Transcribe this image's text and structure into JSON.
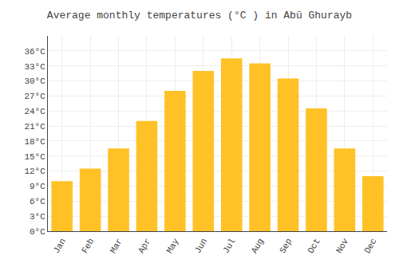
{
  "chart_data": {
    "type": "bar",
    "title": "Average monthly temperatures (°C ) in Abū Ghurayb",
    "categories": [
      "Jan",
      "Feb",
      "Mar",
      "Apr",
      "May",
      "Jun",
      "Jul",
      "Aug",
      "Sep",
      "Oct",
      "Nov",
      "Dec"
    ],
    "values": [
      10,
      12.5,
      16.5,
      22,
      28,
      32,
      34.5,
      33.5,
      30.5,
      24.5,
      16.5,
      11
    ],
    "color": "#FFC125",
    "ylim": [
      0,
      39
    ],
    "yticks": [
      {
        "value": 0,
        "label": "0°C"
      },
      {
        "value": 3,
        "label": "3°C"
      },
      {
        "value": 6,
        "label": "6°C"
      },
      {
        "value": 9,
        "label": "9°C"
      },
      {
        "value": 12,
        "label": "12°C"
      },
      {
        "value": 15,
        "label": "15°C"
      },
      {
        "value": 18,
        "label": "18°C"
      },
      {
        "value": 21,
        "label": "21°C"
      },
      {
        "value": 24,
        "label": "24°C"
      },
      {
        "value": 27,
        "label": "27°C"
      },
      {
        "value": 30,
        "label": "30°C"
      },
      {
        "value": 33,
        "label": "33°C"
      },
      {
        "value": 36,
        "label": "36°C"
      }
    ],
    "grid": true
  }
}
